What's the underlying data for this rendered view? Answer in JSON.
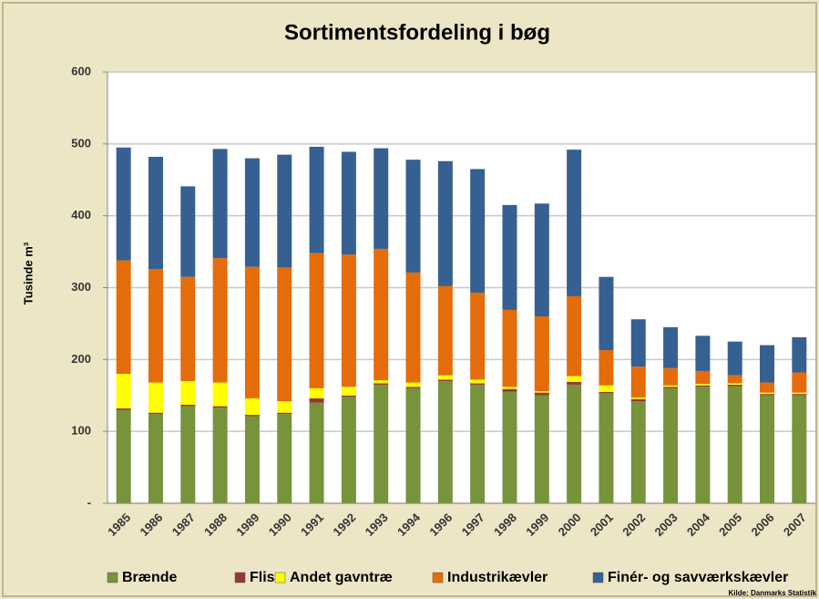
{
  "chart_data": {
    "type": "stacked_bar",
    "title": "Sortimentsfordeling i bøg",
    "y_label": "Tusinde m³",
    "source": "Kilde: Danmarks Statistik",
    "categories": [
      "1985",
      "1986",
      "1987",
      "1988",
      "1989",
      "1990",
      "1991",
      "1992",
      "1993",
      "1994",
      "1996",
      "1997",
      "1998",
      "1999",
      "2000",
      "2001",
      "2002",
      "2003",
      "2004",
      "2005",
      "2006",
      "2007"
    ],
    "series": [
      {
        "name": "Brænde",
        "color": "#77933c",
        "values": [
          130,
          124,
          135,
          133,
          121,
          124,
          140,
          148,
          165,
          160,
          170,
          165,
          155,
          150,
          165,
          153,
          142,
          160,
          162,
          163,
          150,
          150
        ]
      },
      {
        "name": "Flis",
        "color": "#953735",
        "values": [
          2,
          2,
          2,
          2,
          2,
          2,
          6,
          2,
          2,
          2,
          2,
          2,
          4,
          4,
          4,
          2,
          3,
          2,
          2,
          2,
          2,
          2
        ]
      },
      {
        "name": "Andet gavntræ",
        "color": "#ffff00",
        "values": [
          48,
          42,
          33,
          33,
          23,
          16,
          14,
          12,
          4,
          6,
          6,
          5,
          3,
          2,
          8,
          9,
          2,
          2,
          2,
          2,
          2,
          2
        ]
      },
      {
        "name": "Industrikævler",
        "color": "#e46c0a",
        "values": [
          158,
          158,
          145,
          173,
          183,
          186,
          188,
          184,
          183,
          153,
          124,
          121,
          107,
          104,
          111,
          49,
          43,
          24,
          18,
          11,
          14,
          28
        ]
      },
      {
        "name": "Finér- og savværkskævler",
        "color": "#376092",
        "values": [
          157,
          156,
          126,
          152,
          151,
          157,
          148,
          143,
          140,
          157,
          174,
          172,
          146,
          157,
          204,
          102,
          66,
          57,
          49,
          47,
          52,
          49
        ]
      }
    ],
    "ylim": [
      0,
      600
    ],
    "yticks": [
      {
        "value": 0,
        "label": "-"
      },
      100,
      200,
      300,
      400,
      500,
      600
    ],
    "grid": true
  }
}
